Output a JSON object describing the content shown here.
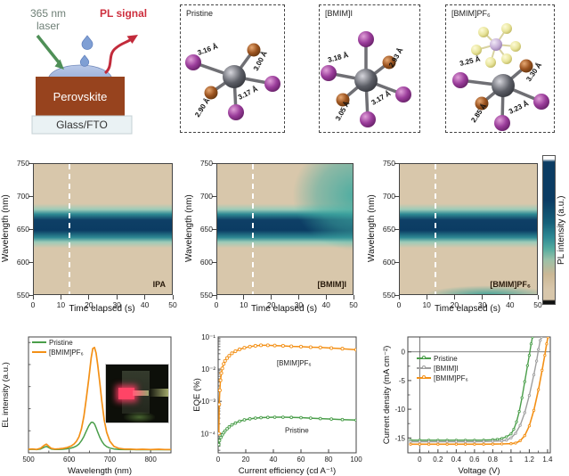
{
  "schematic": {
    "laser_line1": "365 nm",
    "laser_line2": "laser",
    "pl_signal": "PL signal",
    "layer_top": "Perovskite",
    "layer_bottom": "Glass/FTO",
    "laser_color": "#6f8077",
    "pl_color": "#ce2f3e",
    "perovskite_color": "#97431e"
  },
  "molecules": {
    "panels": [
      {
        "title": "Pristine",
        "bonds": [
          "3.16 Å",
          "3.00 Å",
          "2.90 Å",
          "3.17 Å"
        ]
      },
      {
        "title": "[BMIM]I",
        "bonds": [
          "3.18 Å",
          "2.93 Å",
          "3.05 Å",
          "3.17 Å"
        ]
      },
      {
        "title": "[BMIM]PF₆",
        "bonds": [
          "3.25 Å",
          "3.30 Å",
          "2.85 Å",
          "3.23 Å"
        ]
      }
    ],
    "atom_colors": {
      "iodine": "#9b3d9b",
      "bromine": "#9c5420",
      "lead": "#5c5e66",
      "fluorine": "#e8e49a",
      "phosphorus": "#c5aed6"
    }
  },
  "colorbar": {
    "label": "PL intensity (a.u.)"
  },
  "chart_data": [
    {
      "type": "heatmap",
      "id": "hm0",
      "label": "IPA",
      "xlabel": "Time elapsed (s)",
      "ylabel": "Wavelength (nm)",
      "xlim": [
        0,
        50
      ],
      "ylim": [
        550,
        750
      ],
      "xticks": [
        0,
        10,
        20,
        30,
        40,
        50
      ],
      "yticks": [
        550,
        600,
        650,
        700,
        750
      ],
      "dashed_line_s": 13,
      "band": {
        "center_nm": 655,
        "teal_range_nm": [
          630,
          685
        ]
      },
      "feature": "stable emission band over 0-50 s"
    },
    {
      "type": "heatmap",
      "id": "hm1",
      "label": "[BMIM]I",
      "xlabel": "Time elapsed (s)",
      "ylabel": "Wavelength (nm)",
      "xlim": [
        0,
        50
      ],
      "ylim": [
        550,
        750
      ],
      "xticks": [
        0,
        10,
        20,
        30,
        40,
        50
      ],
      "yticks": [
        550,
        600,
        650,
        700,
        750
      ],
      "dashed_line_s": 13,
      "band": {
        "center_nm": 655,
        "teal_range_nm": [
          630,
          690
        ]
      },
      "feature": "band broadens toward 700-750 nm after ~30 s"
    },
    {
      "type": "heatmap",
      "id": "hm2",
      "label": "[BMIM]PF₆",
      "xlabel": "Time elapsed (s)",
      "ylabel": "Wavelength (nm)",
      "xlim": [
        0,
        50
      ],
      "ylim": [
        550,
        750
      ],
      "xticks": [
        0,
        10,
        20,
        30,
        40,
        50
      ],
      "yticks": [
        550,
        600,
        650,
        700,
        750
      ],
      "dashed_line_s": 13,
      "band": {
        "center_nm": 655,
        "teal_range_nm": [
          630,
          685
        ]
      },
      "feature": "weak secondary signal below 560 nm after ~17 s"
    },
    {
      "type": "line",
      "id": "el-chart",
      "legend_id": "el-legend",
      "xlabel": "Wavelength (nm)",
      "ylabel": "EL intensity (a.u.)",
      "xlim": [
        500,
        850
      ],
      "ylim": [
        0,
        1.05
      ],
      "xticks": [
        {
          "v": 500,
          "l": "500"
        },
        {
          "v": 600,
          "l": "600"
        },
        {
          "v": 700,
          "l": "700"
        },
        {
          "v": 800,
          "l": "800"
        }
      ],
      "xminor": [
        550,
        650,
        750,
        850
      ],
      "yticks": [],
      "yminor": [
        0.2,
        0.4,
        0.6,
        0.8,
        1.0
      ],
      "m": {
        "l": 32,
        "t": 8,
        "r": 21,
        "b": 26
      },
      "legend": [
        {
          "label": "Pristine",
          "color": "#4a9e4a"
        },
        {
          "label": "[BMIM]PF₆",
          "color": "#f39016"
        }
      ],
      "series": [
        {
          "name": "Pristine",
          "color": "#4a9e4a",
          "width": 1.5,
          "x": [
            500,
            510,
            520,
            530,
            538,
            544,
            550,
            556,
            565,
            575,
            585,
            595,
            605,
            612,
            618,
            624,
            630,
            636,
            642,
            648,
            654,
            658,
            662,
            666,
            670,
            675,
            680,
            686,
            692,
            700,
            710,
            722,
            736,
            750,
            765,
            780,
            800,
            820,
            835,
            850
          ],
          "y": [
            0.03,
            0.032,
            0.029,
            0.035,
            0.05,
            0.058,
            0.047,
            0.035,
            0.03,
            0.031,
            0.032,
            0.036,
            0.044,
            0.052,
            0.062,
            0.08,
            0.108,
            0.148,
            0.196,
            0.245,
            0.276,
            0.277,
            0.262,
            0.228,
            0.188,
            0.142,
            0.106,
            0.074,
            0.056,
            0.043,
            0.035,
            0.03,
            0.029,
            0.03,
            0.028,
            0.029,
            0.028,
            0.029,
            0.028,
            0.028
          ]
        },
        {
          "name": "[BMIM]PF₆",
          "color": "#f39016",
          "width": 1.7,
          "x": [
            500,
            510,
            520,
            530,
            538,
            544,
            550,
            556,
            565,
            575,
            585,
            595,
            605,
            612,
            618,
            624,
            630,
            636,
            642,
            648,
            654,
            658,
            662,
            666,
            670,
            675,
            680,
            686,
            692,
            700,
            710,
            722,
            736,
            750,
            765,
            780,
            800,
            820,
            835,
            850
          ],
          "y": [
            0.032,
            0.035,
            0.031,
            0.042,
            0.066,
            0.078,
            0.058,
            0.04,
            0.034,
            0.036,
            0.04,
            0.048,
            0.062,
            0.08,
            0.105,
            0.145,
            0.215,
            0.33,
            0.49,
            0.67,
            0.86,
            0.945,
            0.955,
            0.905,
            0.8,
            0.64,
            0.47,
            0.3,
            0.185,
            0.105,
            0.058,
            0.04,
            0.034,
            0.033,
            0.031,
            0.032,
            0.03,
            0.032,
            0.03,
            0.03
          ]
        }
      ]
    },
    {
      "type": "line",
      "id": "eqe-chart",
      "ylog": true,
      "xlabel": "Current efficiency (cd A⁻¹)",
      "ylabel": "EQE (%)",
      "xlim": [
        0,
        100
      ],
      "ylim": [
        2.5e-05,
        0.1
      ],
      "xticks": [
        {
          "v": 0,
          "l": "0"
        },
        {
          "v": 20,
          "l": "20"
        },
        {
          "v": 40,
          "l": "40"
        },
        {
          "v": 60,
          "l": "60"
        },
        {
          "v": 80,
          "l": "80"
        },
        {
          "v": 100,
          "l": "100"
        }
      ],
      "yticks": [
        {
          "v": 0.1,
          "l": "10⁻¹"
        },
        {
          "v": 0.01,
          "l": "10⁻²"
        },
        {
          "v": 0.001,
          "l": "10⁻³"
        },
        {
          "v": 0.0001,
          "l": "10⁻⁴"
        }
      ],
      "m": {
        "l": 30,
        "t": 8,
        "r": 27,
        "b": 26
      },
      "annotations": [
        {
          "text": "[BMIM]PF₆",
          "x": 55,
          "y": 0.013,
          "color": "#222"
        },
        {
          "text": "Pristine",
          "x": 57,
          "y": 0.000105,
          "color": "#222"
        }
      ],
      "series": [
        {
          "name": "[BMIM]PF₆",
          "color": "#f39016",
          "width": 1.5,
          "marker": true,
          "marker_r": 1.6,
          "x": [
            0.5,
            0.8,
            1.2,
            1.7,
            2.3,
            3,
            4,
            5,
            6.5,
            8,
            10,
            12.5,
            15.5,
            19,
            23,
            27,
            31,
            36,
            41,
            47,
            53,
            60,
            67,
            74,
            82,
            90,
            100
          ],
          "y": [
            0.0001,
            0.0008,
            0.0022,
            0.0045,
            0.0075,
            0.0105,
            0.0145,
            0.018,
            0.022,
            0.026,
            0.031,
            0.036,
            0.041,
            0.046,
            0.05,
            0.053,
            0.055,
            0.055,
            0.054,
            0.053,
            0.051,
            0.05,
            0.048,
            0.047,
            0.045,
            0.043,
            0.04
          ]
        },
        {
          "name": "Pristine",
          "color": "#4a9e4a",
          "width": 1.5,
          "marker": true,
          "marker_r": 1.4,
          "x": [
            0.5,
            1,
            2,
            3,
            4,
            5,
            6.5,
            8,
            10,
            12.5,
            15.5,
            19,
            23,
            27,
            31,
            36,
            41,
            47,
            53,
            60,
            67,
            74,
            82,
            90,
            100
          ],
          "y": [
            4.5e-05,
            6e-05,
            7.5e-05,
            9e-05,
            0.000105,
            0.00012,
            0.00014,
            0.00016,
            0.000185,
            0.00021,
            0.00024,
            0.000265,
            0.000285,
            0.0003,
            0.00031,
            0.000315,
            0.00032,
            0.00032,
            0.000315,
            0.00031,
            0.0003,
            0.00029,
            0.00028,
            0.00027,
            0.00026
          ]
        }
      ]
    },
    {
      "type": "line",
      "id": "jv-chart",
      "legend_id": "jv-legend",
      "xlabel": "Voltage (V)",
      "ylabel": "Current density (mA cm⁻²)",
      "xlim": [
        -0.13,
        1.43
      ],
      "ylim": [
        -17.6,
        2.6
      ],
      "xticks": [
        {
          "v": 0,
          "l": "0"
        },
        {
          "v": 0.2,
          "l": "0.2"
        },
        {
          "v": 0.4,
          "l": "0.4"
        },
        {
          "v": 0.6,
          "l": "0.6"
        },
        {
          "v": 0.8,
          "l": "0.8"
        },
        {
          "v": 1.0,
          "l": "1"
        },
        {
          "v": 1.2,
          "l": "1.2"
        },
        {
          "v": 1.4,
          "l": "1.4"
        }
      ],
      "xminor": [
        0.1,
        0.3,
        0.5,
        0.7,
        0.9,
        1.1,
        1.3
      ],
      "yticks": [
        {
          "v": 0,
          "l": "0"
        },
        {
          "v": -5,
          "l": "-5"
        },
        {
          "v": -10,
          "l": "-10"
        },
        {
          "v": -15,
          "l": "-15"
        }
      ],
      "yminor": [
        -2.5,
        -7.5,
        -12.5
      ],
      "zerolines": [
        {
          "axis": "y",
          "v": 0
        },
        {
          "axis": "x",
          "v": 0
        }
      ],
      "m": {
        "l": 30,
        "t": 8,
        "r": 21,
        "b": 26
      },
      "legend": [
        {
          "label": "Pristine",
          "color": "#4a9e4a",
          "marker": true
        },
        {
          "label": "[BMIM]I",
          "color": "#9e9e9e",
          "marker": true
        },
        {
          "label": "[BMIM]PF₆",
          "color": "#f39016",
          "marker": true
        }
      ],
      "series": [
        {
          "name": "Pristine",
          "color": "#4a9e4a",
          "width": 1.4,
          "marker": true,
          "marker_r": 1.2,
          "x": [
            -0.1,
            0,
            0.1,
            0.2,
            0.3,
            0.4,
            0.5,
            0.6,
            0.7,
            0.8,
            0.85,
            0.9,
            0.95,
            1.0,
            1.03,
            1.06,
            1.09,
            1.12,
            1.15,
            1.18,
            1.2,
            1.22,
            1.235
          ],
          "y": [
            -15.4,
            -15.4,
            -15.4,
            -15.4,
            -15.4,
            -15.4,
            -15.4,
            -15.4,
            -15.38,
            -15.32,
            -15.25,
            -15.1,
            -14.8,
            -14.3,
            -13.5,
            -12.2,
            -10.4,
            -8.0,
            -5.2,
            -2.4,
            -0.6,
            1.4,
            2.6
          ]
        },
        {
          "name": "[BMIM]I",
          "color": "#9e9e9e",
          "width": 1.4,
          "marker": true,
          "marker_r": 1.2,
          "x": [
            -0.1,
            0,
            0.1,
            0.2,
            0.3,
            0.4,
            0.5,
            0.6,
            0.7,
            0.8,
            0.9,
            0.95,
            1.0,
            1.05,
            1.1,
            1.15,
            1.2,
            1.25,
            1.28,
            1.3,
            1.32,
            1.335
          ],
          "y": [
            -15.65,
            -15.65,
            -15.65,
            -15.65,
            -15.65,
            -15.65,
            -15.65,
            -15.65,
            -15.63,
            -15.6,
            -15.5,
            -15.4,
            -15.0,
            -14.2,
            -12.8,
            -10.6,
            -7.6,
            -4.0,
            -1.6,
            0.4,
            2.0,
            2.6
          ]
        },
        {
          "name": "[BMIM]PF₆",
          "color": "#f39016",
          "width": 1.6,
          "marker": true,
          "marker_r": 1.2,
          "x": [
            -0.1,
            0,
            0.1,
            0.2,
            0.3,
            0.4,
            0.5,
            0.6,
            0.7,
            0.8,
            0.9,
            1.0,
            1.05,
            1.1,
            1.15,
            1.2,
            1.25,
            1.3,
            1.34,
            1.37,
            1.39,
            1.405
          ],
          "y": [
            -16.1,
            -16.1,
            -16.1,
            -16.1,
            -16.1,
            -16.1,
            -16.1,
            -16.1,
            -16.1,
            -16.08,
            -16.05,
            -16.0,
            -15.9,
            -15.5,
            -14.6,
            -12.9,
            -10.2,
            -6.6,
            -3.2,
            -0.6,
            1.4,
            2.6
          ]
        }
      ]
    }
  ]
}
